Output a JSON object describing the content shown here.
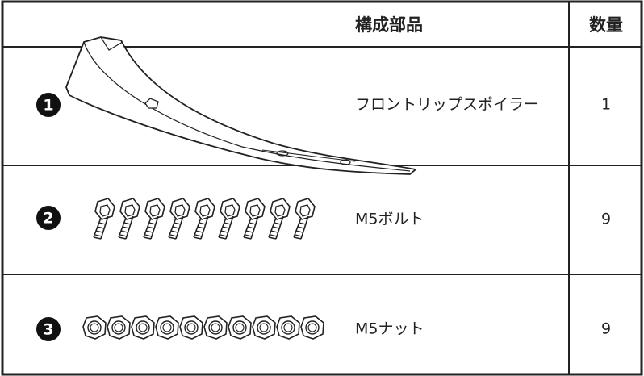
{
  "header": {
    "part": "構成部品",
    "quantity": "数量"
  },
  "rows": [
    {
      "number": "1",
      "part": "フロントリップスポイラー",
      "quantity": 1
    },
    {
      "number": "2",
      "part": "M5ボルト",
      "quantity": 9
    },
    {
      "number": "3",
      "part": "M5ナット",
      "quantity": 9
    }
  ]
}
